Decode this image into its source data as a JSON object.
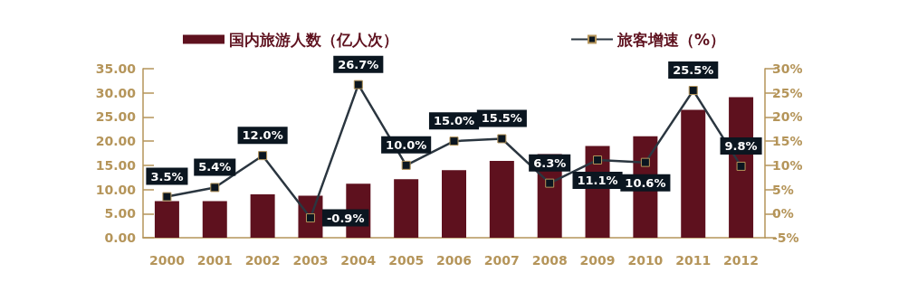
{
  "chart_data": {
    "type": "bar",
    "categories": [
      "2000",
      "2001",
      "2002",
      "2003",
      "2004",
      "2005",
      "2006",
      "2007",
      "2008",
      "2009",
      "2010",
      "2011",
      "2012"
    ],
    "series": [
      {
        "name": "国内旅游人数（亿人次）",
        "color": "#5e111e",
        "values": [
          7.6,
          7.6,
          9.0,
          8.7,
          11.2,
          12.1,
          14.0,
          15.9,
          17.3,
          19.0,
          21.0,
          26.5,
          29.1
        ]
      },
      {
        "name": "旅客增速（%）",
        "type": "line",
        "axis": "y2",
        "color": "#2b3640",
        "marker": "square",
        "values": [
          3.5,
          5.4,
          12.0,
          -0.9,
          26.7,
          10.0,
          15.0,
          15.5,
          6.3,
          11.1,
          10.6,
          25.5,
          9.8
        ],
        "value_labels": [
          "3.5%",
          "5.4%",
          "12.0%",
          "-0.9%",
          "26.7%",
          "10.0%",
          "15.0%",
          "15.5%",
          "6.3%",
          "11.1%",
          "10.6%",
          "25.5%",
          "9.8%"
        ]
      }
    ],
    "ylim": [
      0,
      35
    ],
    "yticks": [
      {
        "value": 0,
        "label": "0.00"
      },
      {
        "value": 5,
        "label": "5.00"
      },
      {
        "value": 10,
        "label": "10.00"
      },
      {
        "value": 15,
        "label": "15.00"
      },
      {
        "value": 20,
        "label": "20.00"
      },
      {
        "value": 25,
        "label": "25.00"
      },
      {
        "value": 30,
        "label": "30.00"
      },
      {
        "value": 35,
        "label": "35.00"
      }
    ],
    "y2lim": [
      -5,
      30
    ],
    "y2ticks": [
      {
        "value": -5,
        "label": "-5%"
      },
      {
        "value": 0,
        "label": "0%"
      },
      {
        "value": 5,
        "label": "5%"
      },
      {
        "value": 10,
        "label": "10%"
      },
      {
        "value": 15,
        "label": "15%"
      },
      {
        "value": 20,
        "label": "20%"
      },
      {
        "value": 25,
        "label": "25%"
      },
      {
        "value": 30,
        "label": "30%"
      }
    ],
    "grid": false,
    "legend": "top"
  }
}
